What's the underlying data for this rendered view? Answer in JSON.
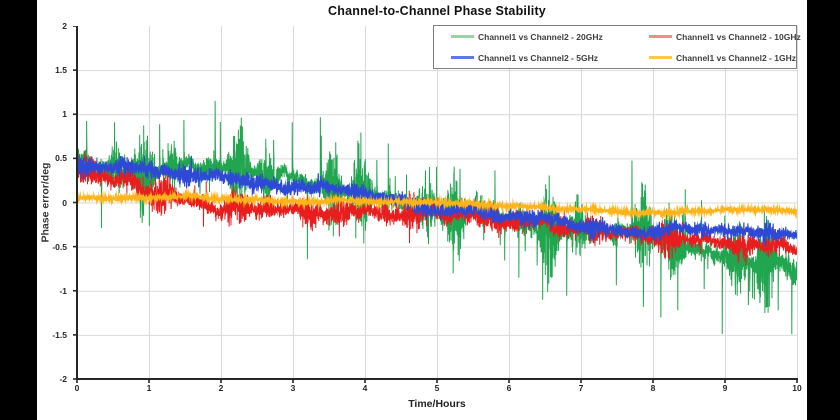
{
  "page": {
    "background": "#ffffff",
    "side_bars_color": "#000000"
  },
  "chart_data": {
    "type": "line",
    "title": "Channel-to-Channel Phase Stability",
    "xlabel": "Time/Hours",
    "ylabel": "Phase error/deg",
    "xlim": [
      0,
      10
    ],
    "ylim": [
      -2,
      2
    ],
    "x_ticks": [
      0,
      1,
      2,
      3,
      4,
      5,
      6,
      7,
      8,
      9,
      10
    ],
    "y_ticks": [
      2,
      1.5,
      1,
      0.5,
      0,
      -0.5,
      -1,
      -1.5,
      -2
    ],
    "grid": true,
    "grid_color": "#d9d9d9",
    "axis_color": "#262626",
    "tick_label_color": "#262626",
    "legend_position": "top-right",
    "legend_border_color": "#808080",
    "series": [
      {
        "name": "Channel1 vs Channel2 - 20GHz",
        "color": "#21A54F",
        "legend_color": "#8FD7A5",
        "trend": {
          "t": [
            0,
            0.3,
            0.6,
            1,
            1.5,
            2,
            2.5,
            3,
            3.5,
            4,
            4.5,
            5,
            5.5,
            6,
            6.5,
            7,
            7.5,
            8,
            8.5,
            9,
            9.5,
            10
          ],
          "v": [
            0.5,
            0.45,
            0.42,
            0.38,
            0.35,
            0.33,
            0.3,
            0.28,
            0.22,
            0.12,
            0.02,
            -0.08,
            -0.14,
            -0.2,
            -0.27,
            -0.33,
            -0.4,
            -0.5,
            -0.55,
            -0.6,
            -0.67,
            -0.72
          ]
        },
        "noise": {
          "sigma_start": 0.14,
          "sigma_end": 0.15,
          "walk_step": 0.018,
          "burst_amp": 0.75,
          "spike_prob": 0.014,
          "spike_min": 0.2,
          "spike_max": 0.85,
          "spike_decay": 0.55,
          "up_bias_start": 0.85,
          "up_bias_end": 0.2,
          "points": 6500,
          "line_width": 1
        }
      },
      {
        "name": "Channel1 vs Channel2 - 10GHz",
        "color": "#E81E1E",
        "legend_color": "#F28C8C",
        "trend": {
          "t": [
            0,
            0.3,
            0.6,
            1,
            1.5,
            2,
            2.5,
            3,
            3.5,
            4,
            4.5,
            5,
            5.5,
            6,
            6.5,
            7,
            7.5,
            8,
            8.5,
            9,
            9.5,
            10
          ],
          "v": [
            0.42,
            0.36,
            0.27,
            0.15,
            0.04,
            -0.03,
            -0.08,
            -0.1,
            -0.12,
            -0.12,
            -0.1,
            -0.12,
            -0.15,
            -0.2,
            -0.26,
            -0.32,
            -0.38,
            -0.42,
            -0.44,
            -0.45,
            -0.44,
            -0.45
          ]
        },
        "noise": {
          "sigma_start": 0.085,
          "sigma_end": 0.06,
          "walk_step": 0.012,
          "burst_amp": 0.5,
          "spike_prob": 0.006,
          "spike_min": 0.06,
          "spike_max": 0.18,
          "spike_decay": 0.5,
          "up_bias_start": 0.5,
          "up_bias_end": 0.5,
          "points": 5500,
          "line_width": 1
        }
      },
      {
        "name": "Channel1 vs Channel2 - 5GHz",
        "color": "#2D49D5",
        "legend_color": "#5B7BE0",
        "trend": {
          "t": [
            0,
            0.3,
            0.6,
            1,
            1.5,
            2,
            2.5,
            3,
            3.5,
            4,
            4.5,
            5,
            5.5,
            6,
            6.5,
            7,
            7.5,
            8,
            8.5,
            9,
            9.5,
            10
          ],
          "v": [
            0.4,
            0.38,
            0.36,
            0.33,
            0.3,
            0.27,
            0.22,
            0.18,
            0.12,
            0.06,
            0.0,
            -0.06,
            -0.1,
            -0.14,
            -0.2,
            -0.26,
            -0.3,
            -0.33,
            -0.35,
            -0.36,
            -0.37,
            -0.38
          ]
        },
        "noise": {
          "sigma_start": 0.05,
          "sigma_end": 0.042,
          "walk_step": 0.01,
          "burst_amp": 0.35,
          "spike_prob": 0.003,
          "spike_min": 0.04,
          "spike_max": 0.09,
          "spike_decay": 0.5,
          "up_bias_start": 0.5,
          "up_bias_end": 0.5,
          "points": 4500,
          "line_width": 1.2
        }
      },
      {
        "name": "Channel1 vs Channel2 - 1GHz",
        "color": "#FFB41C",
        "legend_color": "#FFC845",
        "trend": {
          "t": [
            0,
            1,
            2,
            3,
            4,
            5,
            6,
            7,
            8,
            9,
            10
          ],
          "v": [
            0.04,
            0.05,
            0.04,
            0.02,
            0.0,
            -0.02,
            -0.05,
            -0.07,
            -0.09,
            -0.1,
            -0.1
          ]
        },
        "noise": {
          "sigma_start": 0.012,
          "sigma_end": 0.012,
          "walk_step": 0.005,
          "burst_amp": 0.25,
          "spike_prob": 0,
          "spike_min": 0,
          "spike_max": 0,
          "spike_decay": 0.5,
          "up_bias_start": 0.5,
          "up_bias_end": 0.5,
          "points": 3500,
          "line_width": 1.5
        }
      }
    ]
  }
}
